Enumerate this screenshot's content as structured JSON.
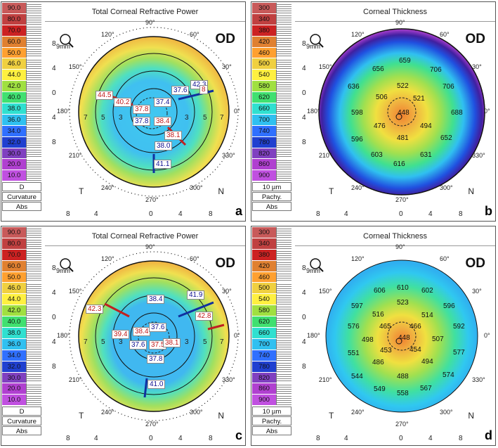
{
  "curvature_legend": {
    "values": [
      "90.0",
      "80.0",
      "70.0",
      "60.0",
      "50.0",
      "46.0",
      "44.0",
      "42.0",
      "40.0",
      "38.0",
      "36.0",
      "34.0",
      "32.0",
      "30.0",
      "20.0",
      "10.0"
    ],
    "colors": [
      "#c85a5a",
      "#c04040",
      "#cc2222",
      "#e08030",
      "#ffa030",
      "#f0d040",
      "#fff040",
      "#a0e040",
      "#40e070",
      "#30e0d0",
      "#30c0f0",
      "#3070ff",
      "#2040d0",
      "#8040c0",
      "#b040d0",
      "#c050e0"
    ],
    "unit": "D",
    "type": "Curvature",
    "mode": "Abs"
  },
  "thickness_legend": {
    "values": [
      "300",
      "340",
      "380",
      "420",
      "460",
      "500",
      "540",
      "580",
      "620",
      "660",
      "700",
      "740",
      "780",
      "820",
      "860",
      "900"
    ],
    "colors": [
      "#c85a5a",
      "#c04040",
      "#cc2222",
      "#e08030",
      "#ffa030",
      "#f0d040",
      "#fff040",
      "#a0e040",
      "#40e070",
      "#30e0d0",
      "#30c0f0",
      "#3070ff",
      "#2040d0",
      "#8040c0",
      "#b040d0",
      "#c050e0"
    ],
    "unit": "10 µm",
    "type": "Pachy.",
    "mode": "Abs"
  },
  "common": {
    "od": "OD",
    "zoom": "9mm",
    "T": "T",
    "N": "N",
    "y_ticks": [
      "8",
      "4",
      "0",
      "4",
      "8"
    ],
    "x_ticks": [
      "8",
      "4",
      "0",
      "4",
      "8"
    ],
    "angles": [
      "90°",
      "120°",
      "150°",
      "180°",
      "210°",
      "240°",
      "270°",
      "300°",
      "330°",
      "0°",
      "30°",
      "60°"
    ],
    "ring_nums": [
      "7",
      "5",
      "3",
      "3",
      "5",
      "7"
    ]
  },
  "panels": {
    "a": {
      "title": "Total Corneal Refractive Power",
      "letter": "a",
      "values": [
        {
          "t": "44.5",
          "c": "red"
        },
        {
          "t": "40.2",
          "c": "red"
        },
        {
          "t": "37.8",
          "c": "red"
        },
        {
          "t": "37.4",
          "c": "blue"
        },
        {
          "t": "37.6",
          "c": "blue"
        },
        {
          "t": "42.3",
          "c": "blue"
        },
        {
          "t": "37.8",
          "c": "blue"
        },
        {
          "t": "38.4",
          "c": "red"
        },
        {
          "t": "38.1",
          "c": "red"
        },
        {
          "t": "38.0",
          "c": "blue"
        },
        {
          "t": "41.1",
          "c": "blue"
        },
        {
          "t": "8",
          "c": "red"
        }
      ]
    },
    "b": {
      "title": "Corneal Thickness",
      "letter": "b",
      "values": [
        "659",
        "656",
        "706",
        "636",
        "706",
        "522",
        "506",
        "521",
        "598",
        "448",
        "688",
        "476",
        "494",
        "596",
        "481",
        "652",
        "603",
        "631",
        "616"
      ]
    },
    "c": {
      "title": "Total Corneal Refractive Power",
      "letter": "c",
      "values": [
        {
          "t": "38.4",
          "c": "blue"
        },
        {
          "t": "41.9",
          "c": "blue"
        },
        {
          "t": "42.3",
          "c": "red"
        },
        {
          "t": "42.8",
          "c": "red"
        },
        {
          "t": "39.4",
          "c": "red"
        },
        {
          "t": "38.4",
          "c": "red"
        },
        {
          "t": "37.6",
          "c": "blue"
        },
        {
          "t": "37.6",
          "c": "blue"
        },
        {
          "t": "37.5",
          "c": "red"
        },
        {
          "t": "38.1",
          "c": "red"
        },
        {
          "t": "37.8",
          "c": "blue"
        },
        {
          "t": "41.0",
          "c": "blue"
        }
      ]
    },
    "d": {
      "title": "Corneal Thickness",
      "letter": "d",
      "values": [
        "610",
        "606",
        "602",
        "597",
        "523",
        "596",
        "516",
        "514",
        "576",
        "465",
        "466",
        "592",
        "498",
        "507",
        "551",
        "448",
        "577",
        "453",
        "454",
        "486",
        "494",
        "544",
        "488",
        "574",
        "549",
        "567",
        "558"
      ]
    }
  }
}
